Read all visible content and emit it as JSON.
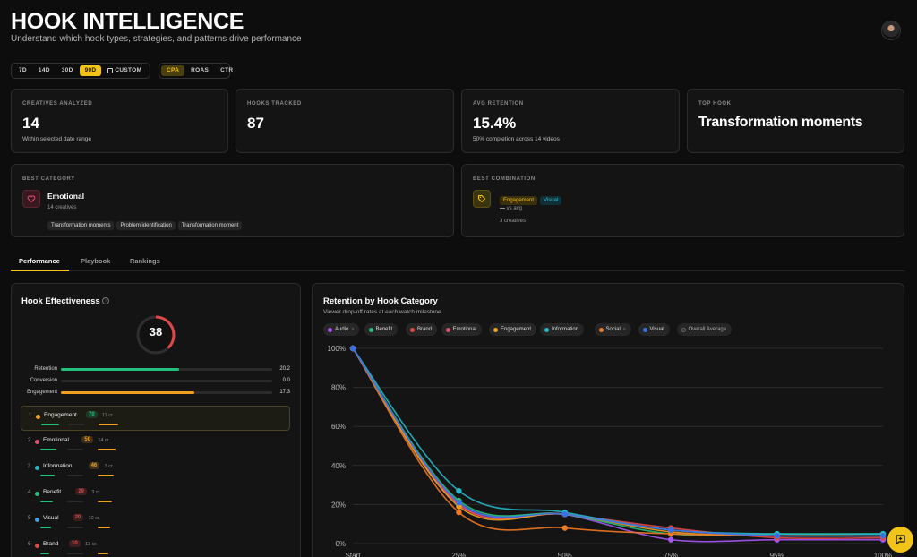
{
  "header": {
    "title": "HOOK INTELLIGENCE",
    "subtitle": "Understand which hook types, strategies, and patterns drive performance"
  },
  "date_ranges": [
    "7D",
    "14D",
    "30D",
    "90D",
    "CUSTOM"
  ],
  "date_range_selected": "90D",
  "metrics": [
    "CPA",
    "ROAS",
    "CTR"
  ],
  "metric_selected": "CPA",
  "kpis": {
    "creatives": {
      "label": "CREATIVES ANALYZED",
      "value": "14",
      "sub": "Within selected date range"
    },
    "hooks": {
      "label": "HOOKS TRACKED",
      "value": "87"
    },
    "retention": {
      "label": "AVG RETENTION",
      "value": "15.4%",
      "sub": "50% completion across 14 videos"
    },
    "top_hook": {
      "label": "TOP HOOK",
      "value": "Transformation moments"
    }
  },
  "best_category": {
    "label": "BEST CATEGORY",
    "name": "Emotional",
    "count": "14 creatives",
    "chips": [
      "Transformation moments",
      "Problem identification",
      "Transformation moment"
    ]
  },
  "best_combination": {
    "label": "BEST COMBINATION",
    "tags": [
      "Engagement",
      "Visual"
    ],
    "vs_value": "—",
    "vs_label": "vs avg",
    "count": "3 creatives"
  },
  "tabs": [
    "Performance",
    "Playbook",
    "Rankings"
  ],
  "effectiveness": {
    "title": "Hook Effectiveness",
    "score": "38",
    "score_fraction": 0.38,
    "bars": [
      {
        "label": "Retention",
        "value": "20.2",
        "fraction": 0.56,
        "color": "#22c07a"
      },
      {
        "label": "Conversion",
        "value": "0.0",
        "fraction": 0.0,
        "color": "#22c07a"
      },
      {
        "label": "Engagement",
        "value": "17.3",
        "fraction": 0.63,
        "color": "#f0a020"
      }
    ],
    "rankings": [
      {
        "rank": "1",
        "name": "Engagement",
        "score": "70",
        "count": "11 cr.",
        "color": "#f0a020",
        "score_color": "#22c07a"
      },
      {
        "rank": "2",
        "name": "Emotional",
        "score": "50",
        "count": "14 cr.",
        "color": "#e0506e",
        "score_color": "#f0a020"
      },
      {
        "rank": "3",
        "name": "Information",
        "score": "46",
        "count": "3 cr.",
        "color": "#22b8c8",
        "score_color": "#f0a020"
      },
      {
        "rank": "4",
        "name": "Benefit",
        "score": "29",
        "count": "3 cr.",
        "color": "#22c07a",
        "score_color": "#e04848"
      },
      {
        "rank": "5",
        "name": "Visual",
        "score": "20",
        "count": "10 cr.",
        "color": "#3aa0e8",
        "score_color": "#e04848"
      },
      {
        "rank": "6",
        "name": "Brand",
        "score": "10",
        "count": "13 cr.",
        "color": "#e04848",
        "score_color": "#e04848"
      }
    ]
  },
  "retention_chart": {
    "title": "Retention by Hook Category",
    "subtitle": "Viewer drop-off rates at each watch milestone",
    "legend": [
      {
        "name": "Audio",
        "color": "#a855f7",
        "arrow": true
      },
      {
        "name": "Benefit",
        "color": "#22c07a"
      },
      {
        "name": "Brand",
        "color": "#e04848"
      },
      {
        "name": "Emotional",
        "color": "#e0506e"
      },
      {
        "name": "Engagement",
        "color": "#f0a020"
      },
      {
        "name": "Information",
        "color": "#22b8c8"
      },
      {
        "name": "Social",
        "color": "#f07820",
        "arrow": true
      },
      {
        "name": "Visual",
        "color": "#3a70e8"
      },
      {
        "name": "Overall Average",
        "color": "#555555"
      }
    ]
  },
  "chart_data": {
    "type": "line",
    "x": [
      "Start",
      "25%",
      "50%",
      "75%",
      "95%",
      "100%"
    ],
    "yticks": [
      "0%",
      "20%",
      "40%",
      "60%",
      "80%",
      "100%"
    ],
    "ylim": [
      0,
      100
    ],
    "series": [
      {
        "name": "Audio",
        "color": "#a855f7",
        "values": [
          100,
          21,
          15,
          2,
          2,
          2
        ]
      },
      {
        "name": "Benefit",
        "color": "#22c07a",
        "values": [
          100,
          22,
          15,
          5,
          5,
          5
        ]
      },
      {
        "name": "Brand",
        "color": "#e04848",
        "values": [
          100,
          20,
          15,
          8,
          3,
          3
        ]
      },
      {
        "name": "Emotional",
        "color": "#e0506e",
        "values": [
          100,
          20,
          15,
          7,
          4,
          4
        ]
      },
      {
        "name": "Engagement",
        "color": "#f0a020",
        "values": [
          100,
          19,
          15,
          6,
          4,
          4
        ]
      },
      {
        "name": "Information",
        "color": "#22b8c8",
        "values": [
          100,
          27,
          16,
          7,
          5,
          5
        ]
      },
      {
        "name": "Social",
        "color": "#f07820",
        "values": [
          100,
          16,
          8,
          5,
          4,
          4
        ]
      },
      {
        "name": "Visual",
        "color": "#3a70e8",
        "values": [
          100,
          21,
          15,
          7,
          4,
          4
        ]
      }
    ]
  }
}
